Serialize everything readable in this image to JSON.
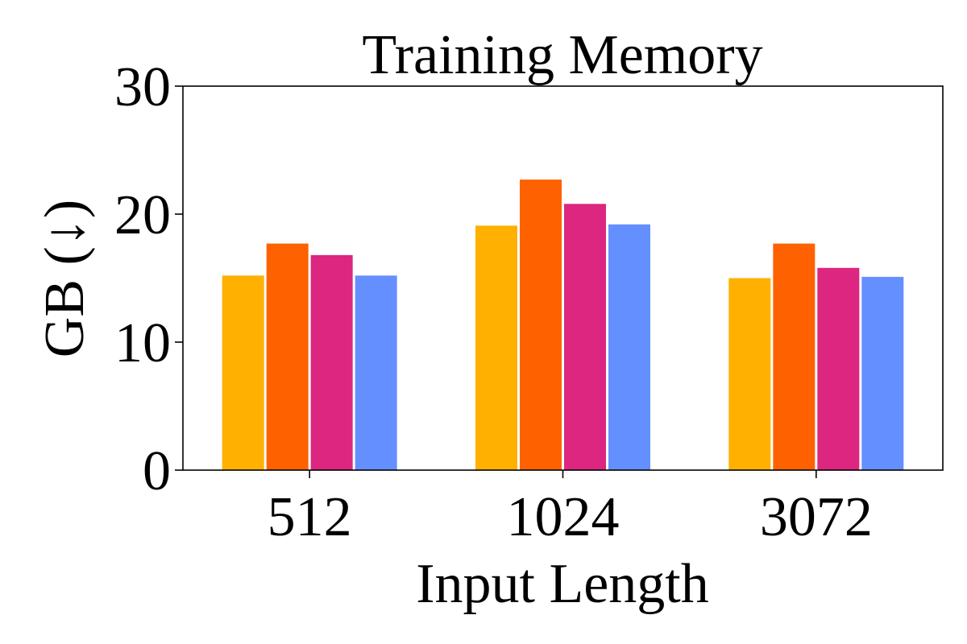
{
  "chart_data": {
    "type": "bar",
    "title": "Training Memory",
    "xlabel": "Input Length",
    "ylabel": "GB (↓)",
    "categories": [
      "512",
      "1024",
      "3072"
    ],
    "ylim": [
      0,
      30
    ],
    "yticks": [
      0,
      10,
      20,
      30
    ],
    "grid": false,
    "series": [
      {
        "color": "#FFB000",
        "values": [
          15.2,
          19.1,
          15.0
        ]
      },
      {
        "color": "#FE6100",
        "values": [
          17.7,
          22.7,
          17.7
        ]
      },
      {
        "color": "#DC267F",
        "values": [
          16.8,
          20.8,
          15.8
        ]
      },
      {
        "color": "#648FFF",
        "values": [
          15.2,
          19.2,
          15.1
        ]
      }
    ]
  }
}
